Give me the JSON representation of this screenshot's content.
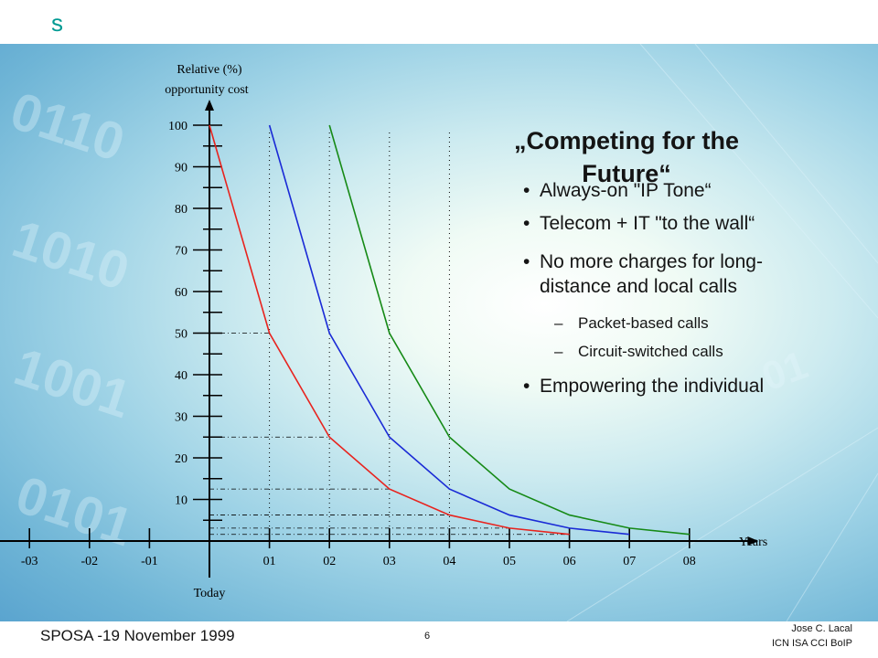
{
  "header": {
    "logo": "s"
  },
  "slide": {
    "title_line1": "„Competing for the",
    "title_line2": "Future“",
    "bullets": [
      {
        "level": 1,
        "text": "Always-on \"IP Tone“"
      },
      {
        "level": 1,
        "text": "Telecom + IT \"to the wall“"
      },
      {
        "level": 1,
        "text": "No more charges for long-"
      },
      {
        "level": 1,
        "text": "distance and local calls"
      },
      {
        "level": 2,
        "text": "Packet-based calls"
      },
      {
        "level": 2,
        "text": "Circuit-switched calls"
      },
      {
        "level": 1,
        "text": "Empowering the individual"
      }
    ]
  },
  "footer": {
    "left": "SPOSA -19 November 1999",
    "page": "6",
    "author": "Jose C. Lacal",
    "org": "ICN ISA CCI BoIP"
  },
  "colors": {
    "brand": "#009a93",
    "red": "#e8231e",
    "blue": "#1a2ad6",
    "green": "#168a16"
  },
  "chart_data": {
    "type": "line",
    "ylabel_line1": "Relative (%)",
    "ylabel_line2": "opportunity cost",
    "xlabel": "Years",
    "today_label": "Today",
    "x_ticks": [
      "-03",
      "-02",
      "-01",
      "01",
      "02",
      "03",
      "04",
      "05",
      "06",
      "07",
      "08"
    ],
    "x_tick_values": [
      -3,
      -2,
      -1,
      1,
      2,
      3,
      4,
      5,
      6,
      7,
      8
    ],
    "y_ticks": [
      10,
      20,
      30,
      40,
      50,
      60,
      70,
      80,
      90,
      100
    ],
    "xlim": [
      -3.5,
      9
    ],
    "ylim": [
      0,
      100
    ],
    "series": [
      {
        "color": "#e8231e",
        "x": [
          0,
          1,
          2,
          3,
          4,
          5,
          6
        ],
        "y": [
          100,
          50,
          25,
          12.5,
          6.25,
          3.1,
          1.6
        ]
      },
      {
        "color": "#1a2ad6",
        "x": [
          1,
          2,
          3,
          4,
          5,
          6,
          7
        ],
        "y": [
          100,
          50,
          25,
          12.5,
          6.25,
          3.1,
          1.6
        ]
      },
      {
        "color": "#168a16",
        "x": [
          2,
          3,
          4,
          5,
          6,
          7,
          8
        ],
        "y": [
          100,
          50,
          25,
          12.5,
          6.25,
          3.1,
          1.6
        ]
      }
    ]
  }
}
